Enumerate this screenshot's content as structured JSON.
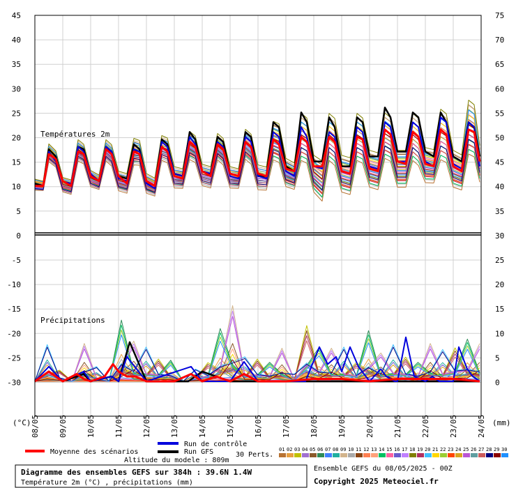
{
  "chart_data": {
    "type": "line",
    "title": "Diagramme des ensembles GEFS sur 384h : 39.6N 1.4W",
    "subtitle": "Température 2m (°C) , précipitations (mm)",
    "left_axis": {
      "unit": "(°C)",
      "ticks": [
        45,
        40,
        35,
        30,
        25,
        20,
        15,
        10,
        5,
        0,
        -5,
        -10,
        -15,
        -20,
        -25,
        -30
      ]
    },
    "right_axis": {
      "unit": "(mm)",
      "ticks": [
        75,
        70,
        65,
        60,
        55,
        50,
        45,
        40,
        35,
        30,
        25,
        20,
        15,
        10,
        5,
        0
      ]
    },
    "x_ticks": [
      "08/05",
      "09/05",
      "10/05",
      "11/05",
      "12/05",
      "13/05",
      "14/05",
      "15/05",
      "16/05",
      "17/05",
      "18/05",
      "19/05",
      "20/05",
      "21/05",
      "22/05",
      "23/05",
      "24/05"
    ],
    "grid": true,
    "panel_labels": {
      "temperature": "Températures 2m",
      "precipitation": "Précipitations"
    },
    "temperature": {
      "mean_x": [
        0,
        0.3,
        0.5,
        0.75,
        1,
        1.3,
        1.55,
        1.75,
        2,
        2.3,
        2.55,
        2.75,
        3,
        3.3,
        3.55,
        3.75,
        4,
        4.3,
        4.55,
        4.75,
        5,
        5.3,
        5.55,
        5.75,
        6,
        6.3,
        6.55,
        6.75,
        7,
        7.3,
        7.55,
        7.75,
        8,
        8.3,
        8.55,
        8.75,
        9,
        9.3,
        9.55,
        9.75,
        10,
        10.3,
        10.55,
        10.75,
        11,
        11.3,
        11.55,
        11.75,
        12,
        12.3,
        12.55,
        12.75,
        13,
        13.3,
        13.55,
        13.75,
        14,
        14.3,
        14.55,
        14.75,
        15,
        15.3,
        15.55,
        15.75,
        15.95
      ],
      "mean_y": [
        10,
        10,
        16.5,
        15.5,
        11,
        10,
        17,
        16.5,
        12,
        11,
        17.5,
        16.5,
        12,
        10.5,
        17,
        16.5,
        11,
        10,
        18,
        17,
        12,
        11.5,
        19,
        18,
        13,
        12,
        18.5,
        17.5,
        12.5,
        12,
        19,
        18,
        12.5,
        12,
        19.5,
        18.5,
        13.5,
        13,
        20,
        19,
        14,
        14,
        20,
        19,
        13,
        12.5,
        20,
        19.5,
        13.5,
        13,
        21.5,
        20.5,
        15,
        14.5,
        21,
        20,
        14.5,
        14,
        21.5,
        20.5,
        14,
        13,
        21.5,
        21,
        15
      ],
      "control_x": [
        0,
        0.3,
        0.5,
        0.75,
        1,
        1.3,
        1.55,
        1.75,
        2,
        2.3,
        2.55,
        2.75,
        3,
        3.3,
        3.55,
        3.75,
        4,
        4.3,
        4.55,
        4.75,
        5,
        5.3,
        5.55,
        5.75,
        6,
        6.3,
        6.55,
        6.75,
        7,
        7.3,
        7.55,
        7.75,
        8,
        8.3,
        8.55,
        8.75,
        9,
        9.3,
        9.55,
        9.75,
        10,
        10.3,
        10.55,
        10.75,
        11,
        11.3,
        11.55,
        11.75,
        12,
        12.3,
        12.55,
        12.75,
        13,
        13.3,
        13.55,
        13.75,
        14,
        14.3,
        14.55,
        14.75,
        15,
        15.3,
        15.55,
        15.75,
        15.95
      ],
      "control_y": [
        10,
        10,
        17,
        15,
        11,
        10.5,
        18,
        17,
        12.5,
        11,
        18,
        17,
        11.5,
        11,
        17.5,
        17,
        10.5,
        9.5,
        19,
        18,
        12.5,
        12,
        20,
        18.5,
        13,
        12.5,
        19,
        18,
        12,
        11.5,
        20,
        19,
        12,
        11.5,
        21,
        20,
        13,
        12,
        22,
        20,
        14,
        13.5,
        21,
        20,
        13,
        12.5,
        22,
        21,
        14,
        13.5,
        23,
        22,
        15,
        15,
        23,
        22,
        15,
        14,
        24,
        23,
        14.5,
        13.5,
        23,
        22,
        14
      ],
      "gfs_x": [
        0,
        0.3,
        0.5,
        0.75,
        1,
        1.3,
        1.55,
        1.75,
        2,
        2.3,
        2.55,
        2.75,
        3,
        3.3,
        3.55,
        3.75,
        4,
        4.3,
        4.55,
        4.75,
        5,
        5.3,
        5.55,
        5.75,
        6,
        6.3,
        6.55,
        6.75,
        7,
        7.3,
        7.55,
        7.75,
        8,
        8.3,
        8.55,
        8.75,
        9,
        9.3,
        9.55,
        9.75,
        10,
        10.3,
        10.55,
        10.75,
        11,
        11.3,
        11.55,
        11.75,
        12,
        12.3,
        12.55,
        12.75,
        13,
        13.3,
        13.55,
        13.75,
        14,
        14.3,
        14.55,
        14.75,
        15,
        15.3,
        15.55,
        15.75,
        15.95
      ],
      "gfs_y": [
        10.5,
        10,
        17.5,
        16,
        11,
        10,
        18,
        17.5,
        12,
        11,
        18,
        17,
        12,
        11.5,
        18.5,
        17.5,
        11,
        10,
        19.5,
        18.5,
        12.5,
        12,
        21,
        19.5,
        13,
        12.5,
        20,
        19,
        12.5,
        12,
        21,
        20,
        12,
        12,
        23,
        22,
        14,
        13,
        25,
        23,
        15,
        15,
        24,
        22,
        14,
        14,
        24,
        23,
        16,
        16,
        26,
        24,
        17,
        17,
        25,
        24,
        17,
        16,
        25,
        23,
        16,
        15,
        23,
        22,
        16
      ],
      "spread_min": [
        9.5,
        9.5,
        15,
        14,
        9,
        8.5,
        15,
        14.5,
        10,
        9.5,
        15,
        14,
        9,
        8.5,
        14,
        14,
        8.5,
        8,
        15,
        14.5,
        9.5,
        9.5,
        15,
        14.5,
        10,
        9.5,
        15,
        14,
        9.5,
        9.5,
        15,
        14,
        9,
        9,
        14.5,
        14,
        9.5,
        9,
        14,
        13.5,
        8,
        6,
        14,
        13,
        8,
        7.5,
        14,
        13.5,
        9,
        8.5,
        14.5,
        14,
        9,
        9,
        14,
        13,
        10,
        10,
        14,
        13.5,
        9,
        8.5,
        15,
        14.5,
        10
      ],
      "spread_max": [
        11,
        10.5,
        18.5,
        17,
        11.5,
        11,
        19.5,
        18.5,
        13,
        12,
        19.5,
        18.5,
        13,
        12.5,
        20,
        19.5,
        12.5,
        11.5,
        20.5,
        20,
        14,
        13.5,
        21.5,
        20.5,
        14.5,
        14,
        21,
        20,
        14,
        13.5,
        22,
        21,
        14.5,
        14,
        24,
        23.5,
        16,
        15,
        26,
        25,
        17,
        16,
        26,
        25,
        17,
        16.5,
        26,
        25,
        18,
        17.5,
        26,
        25,
        18,
        18,
        26,
        25,
        18.5,
        18,
        27,
        26,
        18,
        17,
        29,
        28,
        19
      ]
    },
    "precipitation": {
      "mean_x": [
        0,
        0.5,
        0.75,
        1,
        1.5,
        1.75,
        2,
        2.5,
        2.8,
        3,
        3.3,
        3.6,
        4,
        5,
        5.6,
        6,
        6.5,
        7,
        7.5,
        8,
        9,
        10,
        11,
        12,
        13,
        14,
        15,
        15.95
      ],
      "mean_y": [
        0,
        2,
        1,
        0,
        1.5,
        0.5,
        0,
        1,
        3.5,
        2,
        1,
        1,
        0,
        0,
        1.5,
        0,
        1,
        0,
        1.5,
        0,
        0,
        0.5,
        0.5,
        0,
        0.5,
        0.5,
        0.5,
        0
      ],
      "control_x": [
        0,
        0.5,
        1,
        1.75,
        2,
        2.75,
        3,
        3.3,
        4,
        5.6,
        6,
        7,
        7.5,
        8,
        9.7,
        10.2,
        10.5,
        10.8,
        11,
        11.3,
        11.6,
        12,
        12.4,
        12.6,
        12.9,
        13,
        13.3,
        13.6,
        14,
        14.25,
        14.5,
        15,
        15.2,
        15.5,
        15.7,
        15.95
      ],
      "control_y": [
        0,
        3,
        0,
        2,
        0,
        1,
        0,
        5,
        0,
        3,
        0,
        0,
        4,
        0,
        0,
        7,
        3.5,
        5,
        2,
        7,
        3,
        0,
        2.5,
        1,
        0,
        0,
        9,
        1,
        0,
        1,
        0,
        0,
        7,
        2.5,
        1,
        0
      ],
      "gfs_x": [
        0,
        0.5,
        1,
        1.75,
        2,
        2.75,
        3,
        3.4,
        4,
        5.5,
        6,
        7,
        8,
        9,
        10,
        11,
        12,
        13,
        14,
        15,
        15.95
      ],
      "gfs_y": [
        0,
        2,
        0,
        1.5,
        0,
        1,
        0,
        8,
        0,
        0,
        2,
        0,
        0,
        0,
        0,
        0,
        0,
        0,
        0,
        0,
        0
      ],
      "spread_max": [
        0,
        7.5,
        3,
        0,
        8,
        3,
        0,
        14.5,
        8.5,
        7,
        6,
        5,
        0,
        2.5,
        5,
        12.5,
        16,
        5,
        6,
        4.5,
        7,
        1.5,
        15,
        8,
        7,
        7,
        5,
        12,
        6,
        7.5,
        6.5,
        4.5,
        8,
        6.5,
        9,
        10,
        8
      ]
    },
    "legend": {
      "mean": "Moyenne des scénarios",
      "control": "Run de contrôle",
      "gfs": "Run GFS",
      "perts_label": "30 Perts.",
      "perts": [
        "01",
        "02",
        "03",
        "04",
        "05",
        "06",
        "07",
        "08",
        "09",
        "10",
        "11",
        "12",
        "13",
        "14",
        "15",
        "16",
        "17",
        "18",
        "19",
        "20",
        "21",
        "22",
        "23",
        "24",
        "25",
        "26",
        "27",
        "28",
        "29",
        "30"
      ],
      "pert_colors": [
        "#b87333",
        "#e8a040",
        "#c0c000",
        "#a070d0",
        "#8b5a2b",
        "#2e8b57",
        "#4080ff",
        "#20b0a0",
        "#d2b48c",
        "#a9a9a9",
        "#8b4513",
        "#ff7f50",
        "#ffa07a",
        "#00c060",
        "#ff60a0",
        "#6a5acd",
        "#c080ff",
        "#808000",
        "#b03060",
        "#40c0ff",
        "#ffd700",
        "#9acd32",
        "#ff4500",
        "#daa520",
        "#ba55d3",
        "#5f9ea0",
        "#cd5c5c",
        "#000080",
        "#8b0000",
        "#1e90ff"
      ],
      "colors": {
        "mean": "#ff0000",
        "control": "#0000dd",
        "gfs": "#000000"
      }
    }
  },
  "footer": {
    "altitude": "Altitude du modele : 809m",
    "ensemble": "Ensemble GEFS du 08/05/2025 - 00Z",
    "copyright": "Copyright 2025 Meteociel.fr"
  }
}
